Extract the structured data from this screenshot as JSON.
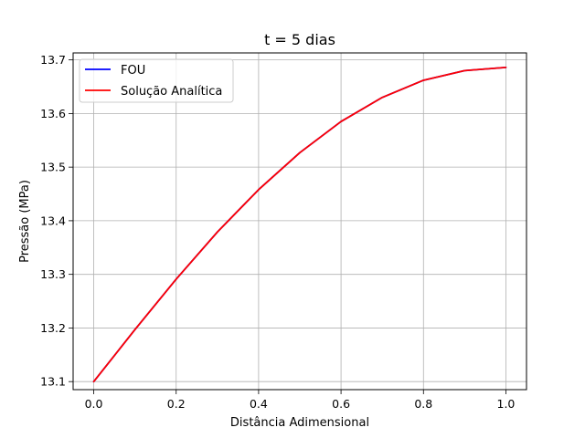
{
  "chart_data": {
    "type": "line",
    "title": "t = 5 dias",
    "xlabel": "Distância Adimensional",
    "ylabel": "Pressão (MPa)",
    "xlim": [
      -0.05,
      1.05
    ],
    "ylim": [
      13.085,
      13.713
    ],
    "x_ticks": [
      0.0,
      0.2,
      0.4,
      0.6,
      0.8,
      1.0
    ],
    "x_tick_labels": [
      "0.0",
      "0.2",
      "0.4",
      "0.6",
      "0.8",
      "1.0"
    ],
    "y_ticks": [
      13.1,
      13.2,
      13.3,
      13.4,
      13.5,
      13.6,
      13.7
    ],
    "y_tick_labels": [
      "13.1",
      "13.2",
      "13.3",
      "13.4",
      "13.5",
      "13.6",
      "13.7"
    ],
    "grid": true,
    "legend_position": "top-left",
    "series": [
      {
        "name": "FOU",
        "color": "#0000ff",
        "x": [
          0.0,
          0.1,
          0.2,
          0.3,
          0.4,
          0.5,
          0.6,
          0.7,
          0.8,
          0.9,
          1.0
        ],
        "y": [
          13.1,
          13.197,
          13.291,
          13.379,
          13.458,
          13.527,
          13.585,
          13.63,
          13.662,
          13.68,
          13.686
        ]
      },
      {
        "name": "Solução Analítica",
        "color": "#ff0000",
        "x": [
          0.0,
          0.1,
          0.2,
          0.3,
          0.4,
          0.5,
          0.6,
          0.7,
          0.8,
          0.9,
          1.0
        ],
        "y": [
          13.1,
          13.197,
          13.291,
          13.379,
          13.458,
          13.527,
          13.585,
          13.63,
          13.662,
          13.68,
          13.686
        ]
      }
    ]
  }
}
